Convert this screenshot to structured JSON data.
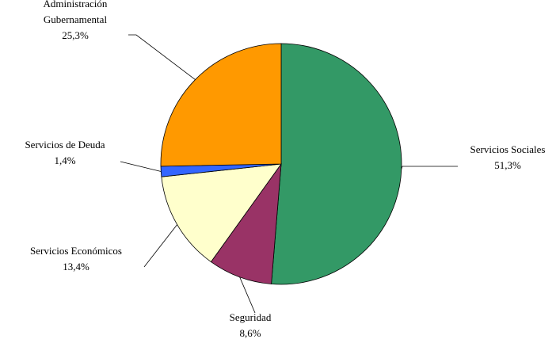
{
  "chart_data": {
    "type": "pie",
    "title": "",
    "slices": [
      {
        "name": "Servicios Sociales",
        "label_lines": [
          "Servicios Sociales"
        ],
        "pct_label": "51,3%",
        "value": 51.3,
        "color": "#339966"
      },
      {
        "name": "Seguridad",
        "label_lines": [
          "Seguridad"
        ],
        "pct_label": "8,6%",
        "value": 8.6,
        "color": "#993366"
      },
      {
        "name": "Servicios Económicos",
        "label_lines": [
          "Servicios Económicos"
        ],
        "pct_label": "13,4%",
        "value": 13.4,
        "color": "#FFFFCC"
      },
      {
        "name": "Servicios de Deuda",
        "label_lines": [
          "Servicios de Deuda"
        ],
        "pct_label": "1,4%",
        "value": 1.4,
        "color": "#3366FF"
      },
      {
        "name": "Administración Gubernamental",
        "label_lines": [
          "Administración",
          "Gubernamental"
        ],
        "pct_label": "25,3%",
        "value": 25.3,
        "color": "#FF9900"
      }
    ],
    "start_angle_deg": 0,
    "direction": "clockwise"
  }
}
